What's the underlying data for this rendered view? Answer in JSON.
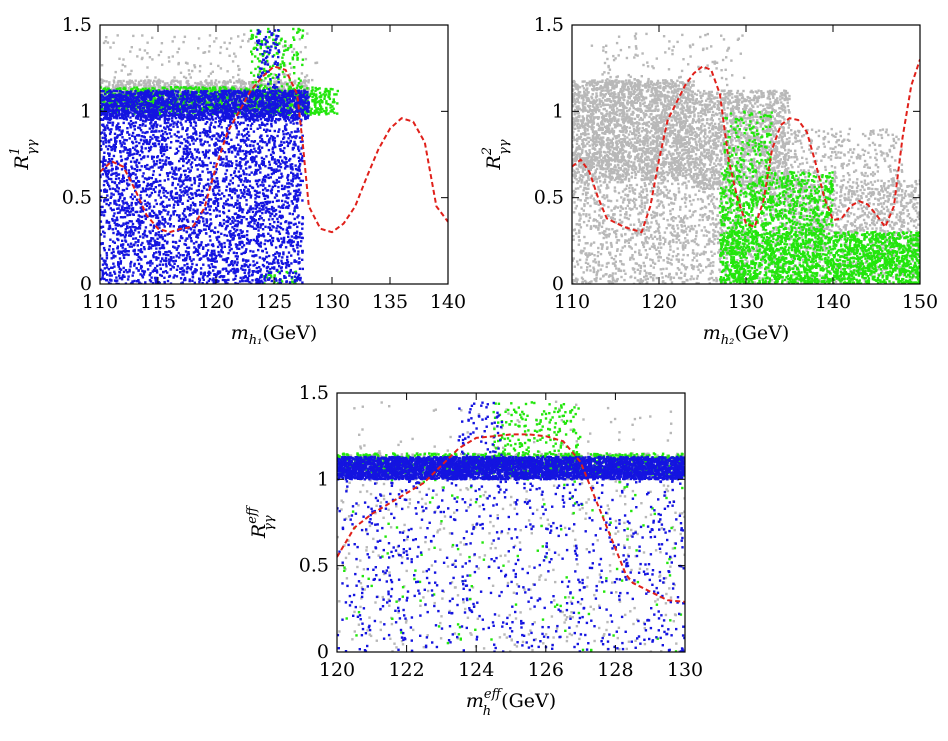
{
  "chart_data": [
    {
      "type": "scatter",
      "id": "panel-1",
      "xlim": [
        110,
        140
      ],
      "ylim": [
        0,
        1.5
      ],
      "xticks": [
        110,
        115,
        120,
        125,
        130,
        135,
        140
      ],
      "yticks": [
        0,
        0.5,
        1,
        1.5
      ],
      "xtick_labels": [
        "110",
        "115",
        "120",
        "125",
        "130",
        "135",
        "140"
      ],
      "ytick_labels": [
        "0",
        "0.5",
        "1",
        "1.5"
      ],
      "xlabel": {
        "symbol": "m",
        "subscript": "h₁",
        "unit": "(GeV)"
      },
      "ylabel": {
        "symbol": "R",
        "superscript": "1",
        "subscript": "γγ"
      },
      "series": [
        {
          "name": "grey",
          "color": "#b8b8b8",
          "regions": [
            {
              "x": [
                110,
                128
              ],
              "y": [
                1.0,
                1.18
              ],
              "n": 1400
            },
            {
              "x": [
                110,
                129
              ],
              "y": [
                1.18,
                1.45
              ],
              "n": 140
            }
          ]
        },
        {
          "name": "green",
          "color": "#22e60c",
          "regions": [
            {
              "x": [
                110,
                130.5
              ],
              "y": [
                0.98,
                1.14
              ],
              "n": 1000
            },
            {
              "x": [
                123,
                127.5
              ],
              "y": [
                1.14,
                1.48
              ],
              "n": 140
            },
            {
              "x": [
                124,
                127
              ],
              "y": [
                0.0,
                0.08
              ],
              "n": 30
            }
          ]
        },
        {
          "name": "blue",
          "color": "#1414e0",
          "regions": [
            {
              "x": [
                110,
                128
              ],
              "y": [
                0.95,
                1.12
              ],
              "n": 2000
            },
            {
              "x": [
                110,
                127.5
              ],
              "y": [
                0.0,
                0.95
              ],
              "n": 3200
            },
            {
              "x": [
                123.5,
                125.5
              ],
              "y": [
                1.12,
                1.47
              ],
              "n": 80
            }
          ]
        }
      ],
      "curve": {
        "color": "#e0201a",
        "x": [
          110,
          111,
          112,
          113,
          114,
          115,
          116,
          117,
          118,
          119,
          120,
          121,
          122,
          123,
          124,
          125,
          126,
          127,
          127.5,
          128,
          129,
          130,
          131,
          132,
          133,
          134,
          135,
          136,
          137,
          138,
          139,
          140
        ],
        "y": [
          0.65,
          0.71,
          0.68,
          0.55,
          0.4,
          0.32,
          0.3,
          0.32,
          0.33,
          0.44,
          0.68,
          0.88,
          1.0,
          1.12,
          1.2,
          1.26,
          1.24,
          1.1,
          0.8,
          0.45,
          0.32,
          0.3,
          0.35,
          0.45,
          0.62,
          0.78,
          0.9,
          0.96,
          0.94,
          0.82,
          0.45,
          0.36
        ]
      }
    },
    {
      "type": "scatter",
      "id": "panel-2",
      "xlim": [
        110,
        150
      ],
      "ylim": [
        0,
        1.5
      ],
      "xticks": [
        110,
        120,
        130,
        140,
        150
      ],
      "yticks": [
        0,
        0.5,
        1,
        1.5
      ],
      "xtick_labels": [
        "110",
        "120",
        "130",
        "140",
        "150"
      ],
      "ytick_labels": [
        "0",
        "0.5",
        "1",
        "1.5"
      ],
      "xlabel": {
        "symbol": "m",
        "subscript": "h₂",
        "unit": "(GeV)"
      },
      "ylabel": {
        "symbol": "R",
        "superscript": "2",
        "subscript": "γγ"
      },
      "series": [
        {
          "name": "grey",
          "color": "#b8b8b8",
          "regions": [
            {
              "x": [
                110,
                124
              ],
              "y": [
                0.6,
                1.18
              ],
              "n": 2600
            },
            {
              "x": [
                124,
                135
              ],
              "y": [
                0.55,
                1.12
              ],
              "n": 1500
            },
            {
              "x": [
                110,
                150
              ],
              "y": [
                0.0,
                0.6
              ],
              "n": 2400
            },
            {
              "x": [
                135,
                148
              ],
              "y": [
                0.3,
                0.9
              ],
              "n": 500
            },
            {
              "x": [
                112,
                130
              ],
              "y": [
                1.15,
                1.45
              ],
              "n": 120
            }
          ]
        },
        {
          "name": "green",
          "color": "#22e60c",
          "regions": [
            {
              "x": [
                127,
                150
              ],
              "y": [
                0.0,
                0.3
              ],
              "n": 2000
            },
            {
              "x": [
                127,
                140
              ],
              "y": [
                0.3,
                0.65
              ],
              "n": 700
            },
            {
              "x": [
                127.5,
                133
              ],
              "y": [
                0.65,
                1.0
              ],
              "n": 150
            }
          ]
        }
      ],
      "curve": {
        "color": "#e0201a",
        "x": [
          110,
          111,
          112,
          113,
          114,
          116,
          118,
          119,
          120,
          121,
          122,
          123,
          124,
          125,
          126,
          127,
          128,
          129,
          130,
          131,
          132,
          133,
          134,
          135,
          136,
          137,
          138,
          139,
          140,
          141,
          142,
          143,
          144,
          145,
          146,
          147,
          148,
          149,
          150
        ],
        "y": [
          0.68,
          0.72,
          0.65,
          0.5,
          0.38,
          0.33,
          0.3,
          0.45,
          0.72,
          0.95,
          1.05,
          1.15,
          1.22,
          1.26,
          1.24,
          1.1,
          0.72,
          0.5,
          0.35,
          0.33,
          0.48,
          0.78,
          0.92,
          0.96,
          0.95,
          0.88,
          0.7,
          0.5,
          0.37,
          0.38,
          0.45,
          0.48,
          0.46,
          0.4,
          0.33,
          0.45,
          0.85,
          1.15,
          1.3
        ]
      }
    },
    {
      "type": "scatter",
      "id": "panel-3",
      "xlim": [
        120,
        130
      ],
      "ylim": [
        0,
        1.5
      ],
      "xticks": [
        120,
        122,
        124,
        126,
        128,
        130
      ],
      "yticks": [
        0,
        0.5,
        1,
        1.5
      ],
      "xtick_labels": [
        "120",
        "122",
        "124",
        "126",
        "128",
        "130"
      ],
      "ytick_labels": [
        "0",
        "0.5",
        "1",
        "1.5"
      ],
      "xlabel": {
        "symbol": "m",
        "subscript": "h",
        "superscript": "eff",
        "unit": "(GeV)"
      },
      "ylabel": {
        "symbol": "R",
        "superscript": "eff",
        "subscript": "γγ"
      },
      "series": [
        {
          "name": "grey",
          "color": "#b8b8b8",
          "regions": [
            {
              "x": [
                120,
                130
              ],
              "y": [
                1.0,
                1.15
              ],
              "n": 900
            },
            {
              "x": [
                120,
                130
              ],
              "y": [
                0.0,
                1.0
              ],
              "n": 400
            },
            {
              "x": [
                120,
                130
              ],
              "y": [
                1.15,
                1.45
              ],
              "n": 60
            }
          ]
        },
        {
          "name": "green",
          "color": "#22e60c",
          "regions": [
            {
              "x": [
                120,
                130
              ],
              "y": [
                1.02,
                1.15
              ],
              "n": 1200
            },
            {
              "x": [
                124.5,
                127
              ],
              "y": [
                1.15,
                1.45
              ],
              "n": 160
            },
            {
              "x": [
                120,
                130
              ],
              "y": [
                0.0,
                1.0
              ],
              "n": 120
            }
          ]
        },
        {
          "name": "blue",
          "color": "#1414e0",
          "regions": [
            {
              "x": [
                120,
                130
              ],
              "y": [
                1.0,
                1.13
              ],
              "n": 4200
            },
            {
              "x": [
                120,
                130
              ],
              "y": [
                0.0,
                1.0
              ],
              "n": 800
            },
            {
              "x": [
                123.5,
                124.8
              ],
              "y": [
                1.13,
                1.45
              ],
              "n": 60
            }
          ]
        }
      ],
      "curve": {
        "color": "#e0201a",
        "x": [
          120,
          120.5,
          121,
          121.5,
          122,
          122.5,
          123,
          123.5,
          124,
          124.5,
          125,
          125.5,
          126,
          126.5,
          127,
          127.3,
          127.6,
          128,
          128.3,
          128.5,
          129,
          129.5,
          130
        ],
        "y": [
          0.55,
          0.72,
          0.8,
          0.86,
          0.92,
          0.98,
          1.08,
          1.18,
          1.24,
          1.25,
          1.26,
          1.26,
          1.25,
          1.22,
          1.1,
          0.95,
          0.8,
          0.6,
          0.45,
          0.4,
          0.35,
          0.3,
          0.29
        ]
      }
    }
  ]
}
